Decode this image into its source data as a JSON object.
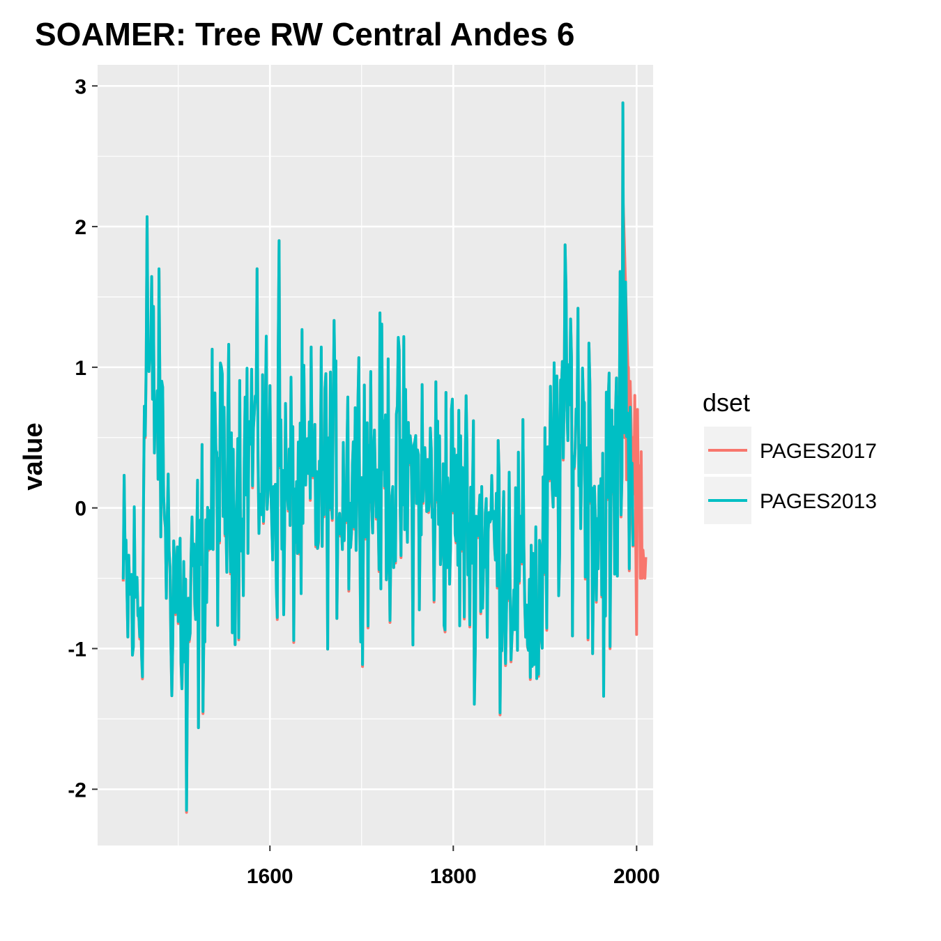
{
  "chart_data": {
    "type": "line",
    "title": "SOAMER: Tree RW Central Andes 6",
    "xlabel": "",
    "ylabel": "value",
    "xlim": [
      1412,
      2018
    ],
    "ylim": [
      -2.4,
      3.15
    ],
    "x_ticks": [
      1600,
      1800,
      2000
    ],
    "y_ticks": [
      -2,
      -1,
      0,
      1,
      2,
      3
    ],
    "grid": true,
    "legend": {
      "title": "dset",
      "placement": "right"
    },
    "series": [
      {
        "name": "PAGES2017",
        "color": "#F8766D",
        "x_start": 1440,
        "x_end": 2010,
        "values_note": "annual ring-width index, shown only where not overlapped (1985-2010)",
        "tail_x": [
          1985,
          1986,
          1987,
          1988,
          1989,
          1990,
          1991,
          1992,
          1993,
          1994,
          1995,
          1996,
          1997,
          1998,
          1999,
          2000,
          2001,
          2002,
          2003,
          2004,
          2005,
          2006,
          2007,
          2008,
          2009,
          2010
        ],
        "tail_values": [
          2.25,
          1.1,
          0.5,
          1.3,
          0.2,
          0.8,
          1.0,
          0.4,
          0.9,
          0.6,
          0.2,
          0.5,
          0.1,
          0.8,
          -0.2,
          -0.9,
          0.7,
          0.0,
          0.3,
          -0.5,
          0.4,
          -0.5,
          -0.3,
          -0.4,
          -0.5,
          -0.35
        ]
      },
      {
        "name": "PAGES2013",
        "color": "#00BFC4",
        "x_start": 1440,
        "x_end": 1996
      }
    ],
    "key_values": {
      "max": {
        "x": 1985,
        "y": 2.88
      },
      "min": {
        "x": 1509,
        "y": -2.15
      },
      "early_peak": {
        "x": 1466,
        "y": 2.07
      },
      "peak_1610": {
        "x": 1610,
        "y": 1.9
      },
      "peak_1922": {
        "x": 1922,
        "y": 1.87
      }
    }
  }
}
